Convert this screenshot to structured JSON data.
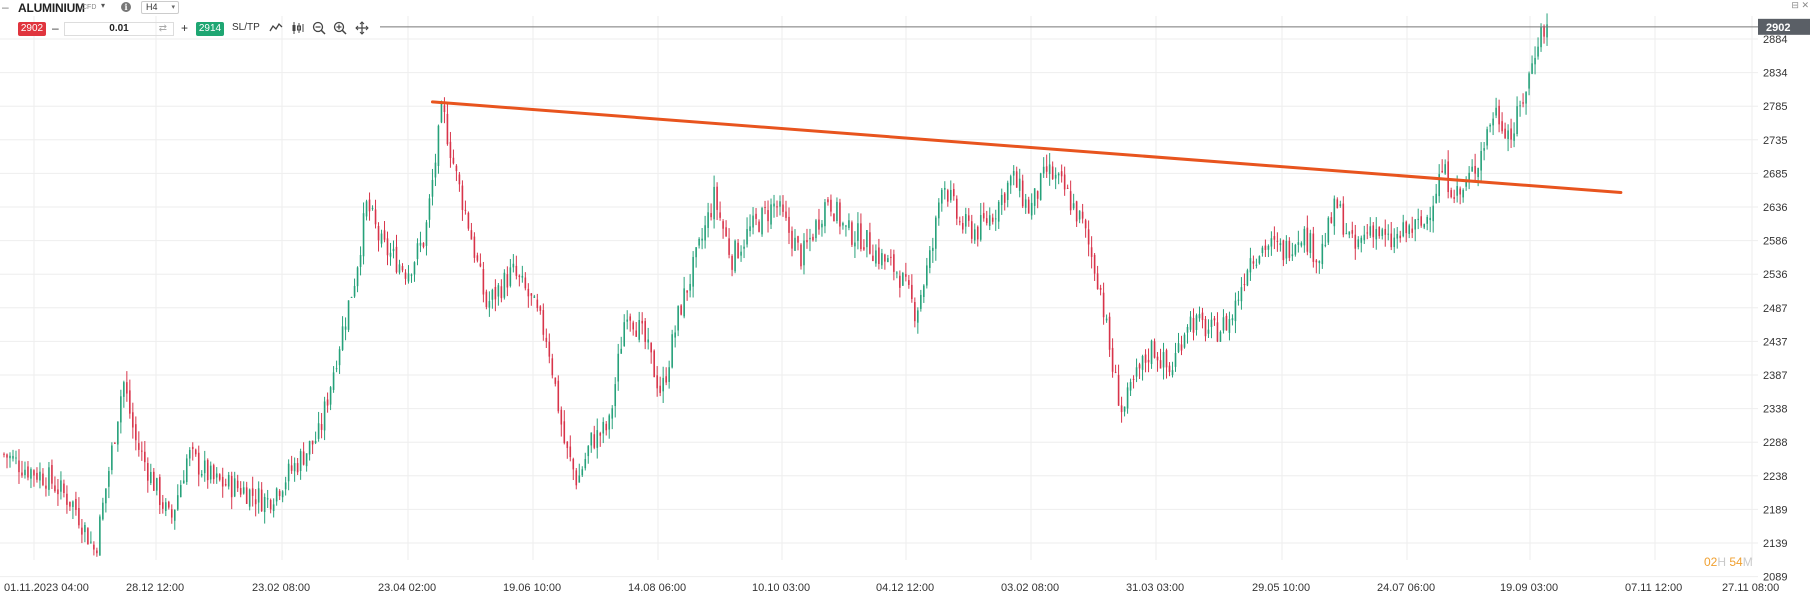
{
  "header": {
    "collapse_icon": "minus-icon",
    "symbol": "ALUMINIUM",
    "symbol_type": "CFD",
    "symbol_caret": "▾",
    "info_icon": "i",
    "timeframe": "H4",
    "timeframe_caret": "▾"
  },
  "trade_bar": {
    "sell_price": "2902",
    "minus": "–",
    "quantity": "0.01",
    "swap_icon": "⇄",
    "plus": "+",
    "buy_price": "2914",
    "sltp_label": "SL/TP",
    "tools": [
      "line-chart-icon",
      "candles-icon",
      "zoom-out-icon",
      "zoom-in-icon",
      "crosshair-icon"
    ]
  },
  "window_controls": "⊟ ✕",
  "countdown": {
    "hours": "02",
    "h_unit": "H",
    "minutes": "54",
    "m_unit": "M"
  },
  "colors": {
    "up": "#26a17a",
    "down": "#d8344a",
    "trendline": "#e8541e",
    "price_tag": "#5a5f66",
    "grid": "#eeeeee"
  },
  "chart_data": {
    "type": "candlestick",
    "symbol": "ALUMINIUM",
    "timeframe": "H4",
    "current_price": 2902,
    "price_tag": "2902",
    "ylim": [
      2089,
      2934
    ],
    "y_ticks": [
      2884,
      2834,
      2785,
      2735,
      2685,
      2636,
      2586,
      2536,
      2487,
      2437,
      2387,
      2338,
      2288,
      2238,
      2189,
      2139,
      2089
    ],
    "x_ticks": [
      "01.11.2023 04:00",
      "28.12 12:00",
      "23.02 08:00",
      "23.04 02:00",
      "19.06 10:00",
      "14.08 06:00",
      "10.10 03:00",
      "04.12 12:00",
      "03.02 08:00",
      "31.03 03:00",
      "29.05 10:00",
      "24.07 06:00",
      "19.09 03:00",
      "07.11 12:00",
      "27.11 08:00"
    ],
    "price_path": [
      [
        0,
        2270
      ],
      [
        0.012,
        2250
      ],
      [
        0.025,
        2235
      ],
      [
        0.04,
        2195
      ],
      [
        0.052,
        2125
      ],
      [
        0.06,
        2250
      ],
      [
        0.068,
        2380
      ],
      [
        0.075,
        2290
      ],
      [
        0.085,
        2230
      ],
      [
        0.095,
        2170
      ],
      [
        0.105,
        2270
      ],
      [
        0.12,
        2230
      ],
      [
        0.135,
        2220
      ],
      [
        0.15,
        2200
      ],
      [
        0.165,
        2250
      ],
      [
        0.18,
        2300
      ],
      [
        0.19,
        2420
      ],
      [
        0.2,
        2530
      ],
      [
        0.207,
        2640
      ],
      [
        0.215,
        2580
      ],
      [
        0.23,
        2540
      ],
      [
        0.24,
        2590
      ],
      [
        0.25,
        2780
      ],
      [
        0.258,
        2680
      ],
      [
        0.265,
        2610
      ],
      [
        0.275,
        2490
      ],
      [
        0.29,
        2540
      ],
      [
        0.3,
        2500
      ],
      [
        0.31,
        2440
      ],
      [
        0.32,
        2280
      ],
      [
        0.327,
        2230
      ],
      [
        0.335,
        2290
      ],
      [
        0.345,
        2310
      ],
      [
        0.355,
        2490
      ],
      [
        0.365,
        2440
      ],
      [
        0.375,
        2360
      ],
      [
        0.385,
        2480
      ],
      [
        0.395,
        2560
      ],
      [
        0.405,
        2650
      ],
      [
        0.415,
        2560
      ],
      [
        0.425,
        2600
      ],
      [
        0.44,
        2640
      ],
      [
        0.455,
        2560
      ],
      [
        0.47,
        2650
      ],
      [
        0.48,
        2600
      ],
      [
        0.49,
        2590
      ],
      [
        0.5,
        2560
      ],
      [
        0.51,
        2540
      ],
      [
        0.52,
        2480
      ],
      [
        0.53,
        2580
      ],
      [
        0.535,
        2680
      ],
      [
        0.545,
        2610
      ],
      [
        0.555,
        2600
      ],
      [
        0.565,
        2630
      ],
      [
        0.575,
        2680
      ],
      [
        0.585,
        2630
      ],
      [
        0.595,
        2690
      ],
      [
        0.605,
        2660
      ],
      [
        0.615,
        2610
      ],
      [
        0.625,
        2520
      ],
      [
        0.632,
        2400
      ],
      [
        0.638,
        2330
      ],
      [
        0.645,
        2380
      ],
      [
        0.655,
        2430
      ],
      [
        0.665,
        2390
      ],
      [
        0.675,
        2470
      ],
      [
        0.69,
        2450
      ],
      [
        0.7,
        2470
      ],
      [
        0.71,
        2560
      ],
      [
        0.72,
        2580
      ],
      [
        0.73,
        2570
      ],
      [
        0.74,
        2600
      ],
      [
        0.75,
        2560
      ],
      [
        0.76,
        2640
      ],
      [
        0.77,
        2570
      ],
      [
        0.78,
        2610
      ],
      [
        0.79,
        2580
      ],
      [
        0.8,
        2600
      ],
      [
        0.81,
        2610
      ],
      [
        0.82,
        2690
      ],
      [
        0.83,
        2650
      ],
      [
        0.84,
        2700
      ],
      [
        0.85,
        2780
      ],
      [
        0.86,
        2740
      ],
      [
        0.87,
        2830
      ],
      [
        0.875,
        2890
      ],
      [
        0.88,
        2902
      ]
    ],
    "trendline": {
      "from": {
        "x_frac": 0.246,
        "y": 2791
      },
      "to": {
        "x_frac": 0.922,
        "y": 2657
      }
    }
  }
}
